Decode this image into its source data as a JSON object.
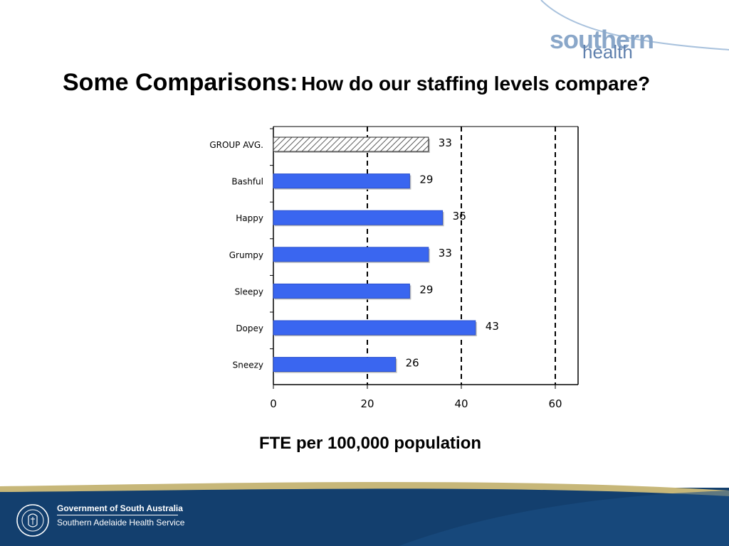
{
  "header": {
    "logo_top": "southern",
    "logo_bottom": "health"
  },
  "title": {
    "main": "Some Comparisons:",
    "sub": "How do our staffing levels compare?"
  },
  "chart_data": {
    "type": "bar",
    "orientation": "horizontal",
    "categories": [
      "GROUP AVG.",
      "Bashful",
      "Happy",
      "Grumpy",
      "Sleepy",
      "Dopey",
      "Sneezy"
    ],
    "values": [
      33,
      29,
      36,
      33,
      29,
      43,
      26
    ],
    "data_labels": [
      "33",
      "29",
      "36",
      "33",
      "29",
      "43",
      "26"
    ],
    "xlim": [
      0,
      65
    ],
    "xticks": [
      0,
      20,
      40,
      60
    ],
    "xtick_labels": [
      "0",
      "20",
      "40",
      "60"
    ],
    "grid": "dashed vertical lines at 20, 40, 60",
    "xlabel": "FTE per 100,000 population",
    "colors": {
      "bar": "#3a66f0",
      "group_avg": "hatched"
    }
  },
  "footer": {
    "line1": "Government of South Australia",
    "line2": "Southern Adelaide Health Service",
    "colors": {
      "band": "#133f6e",
      "gold": "#c7b779"
    }
  }
}
